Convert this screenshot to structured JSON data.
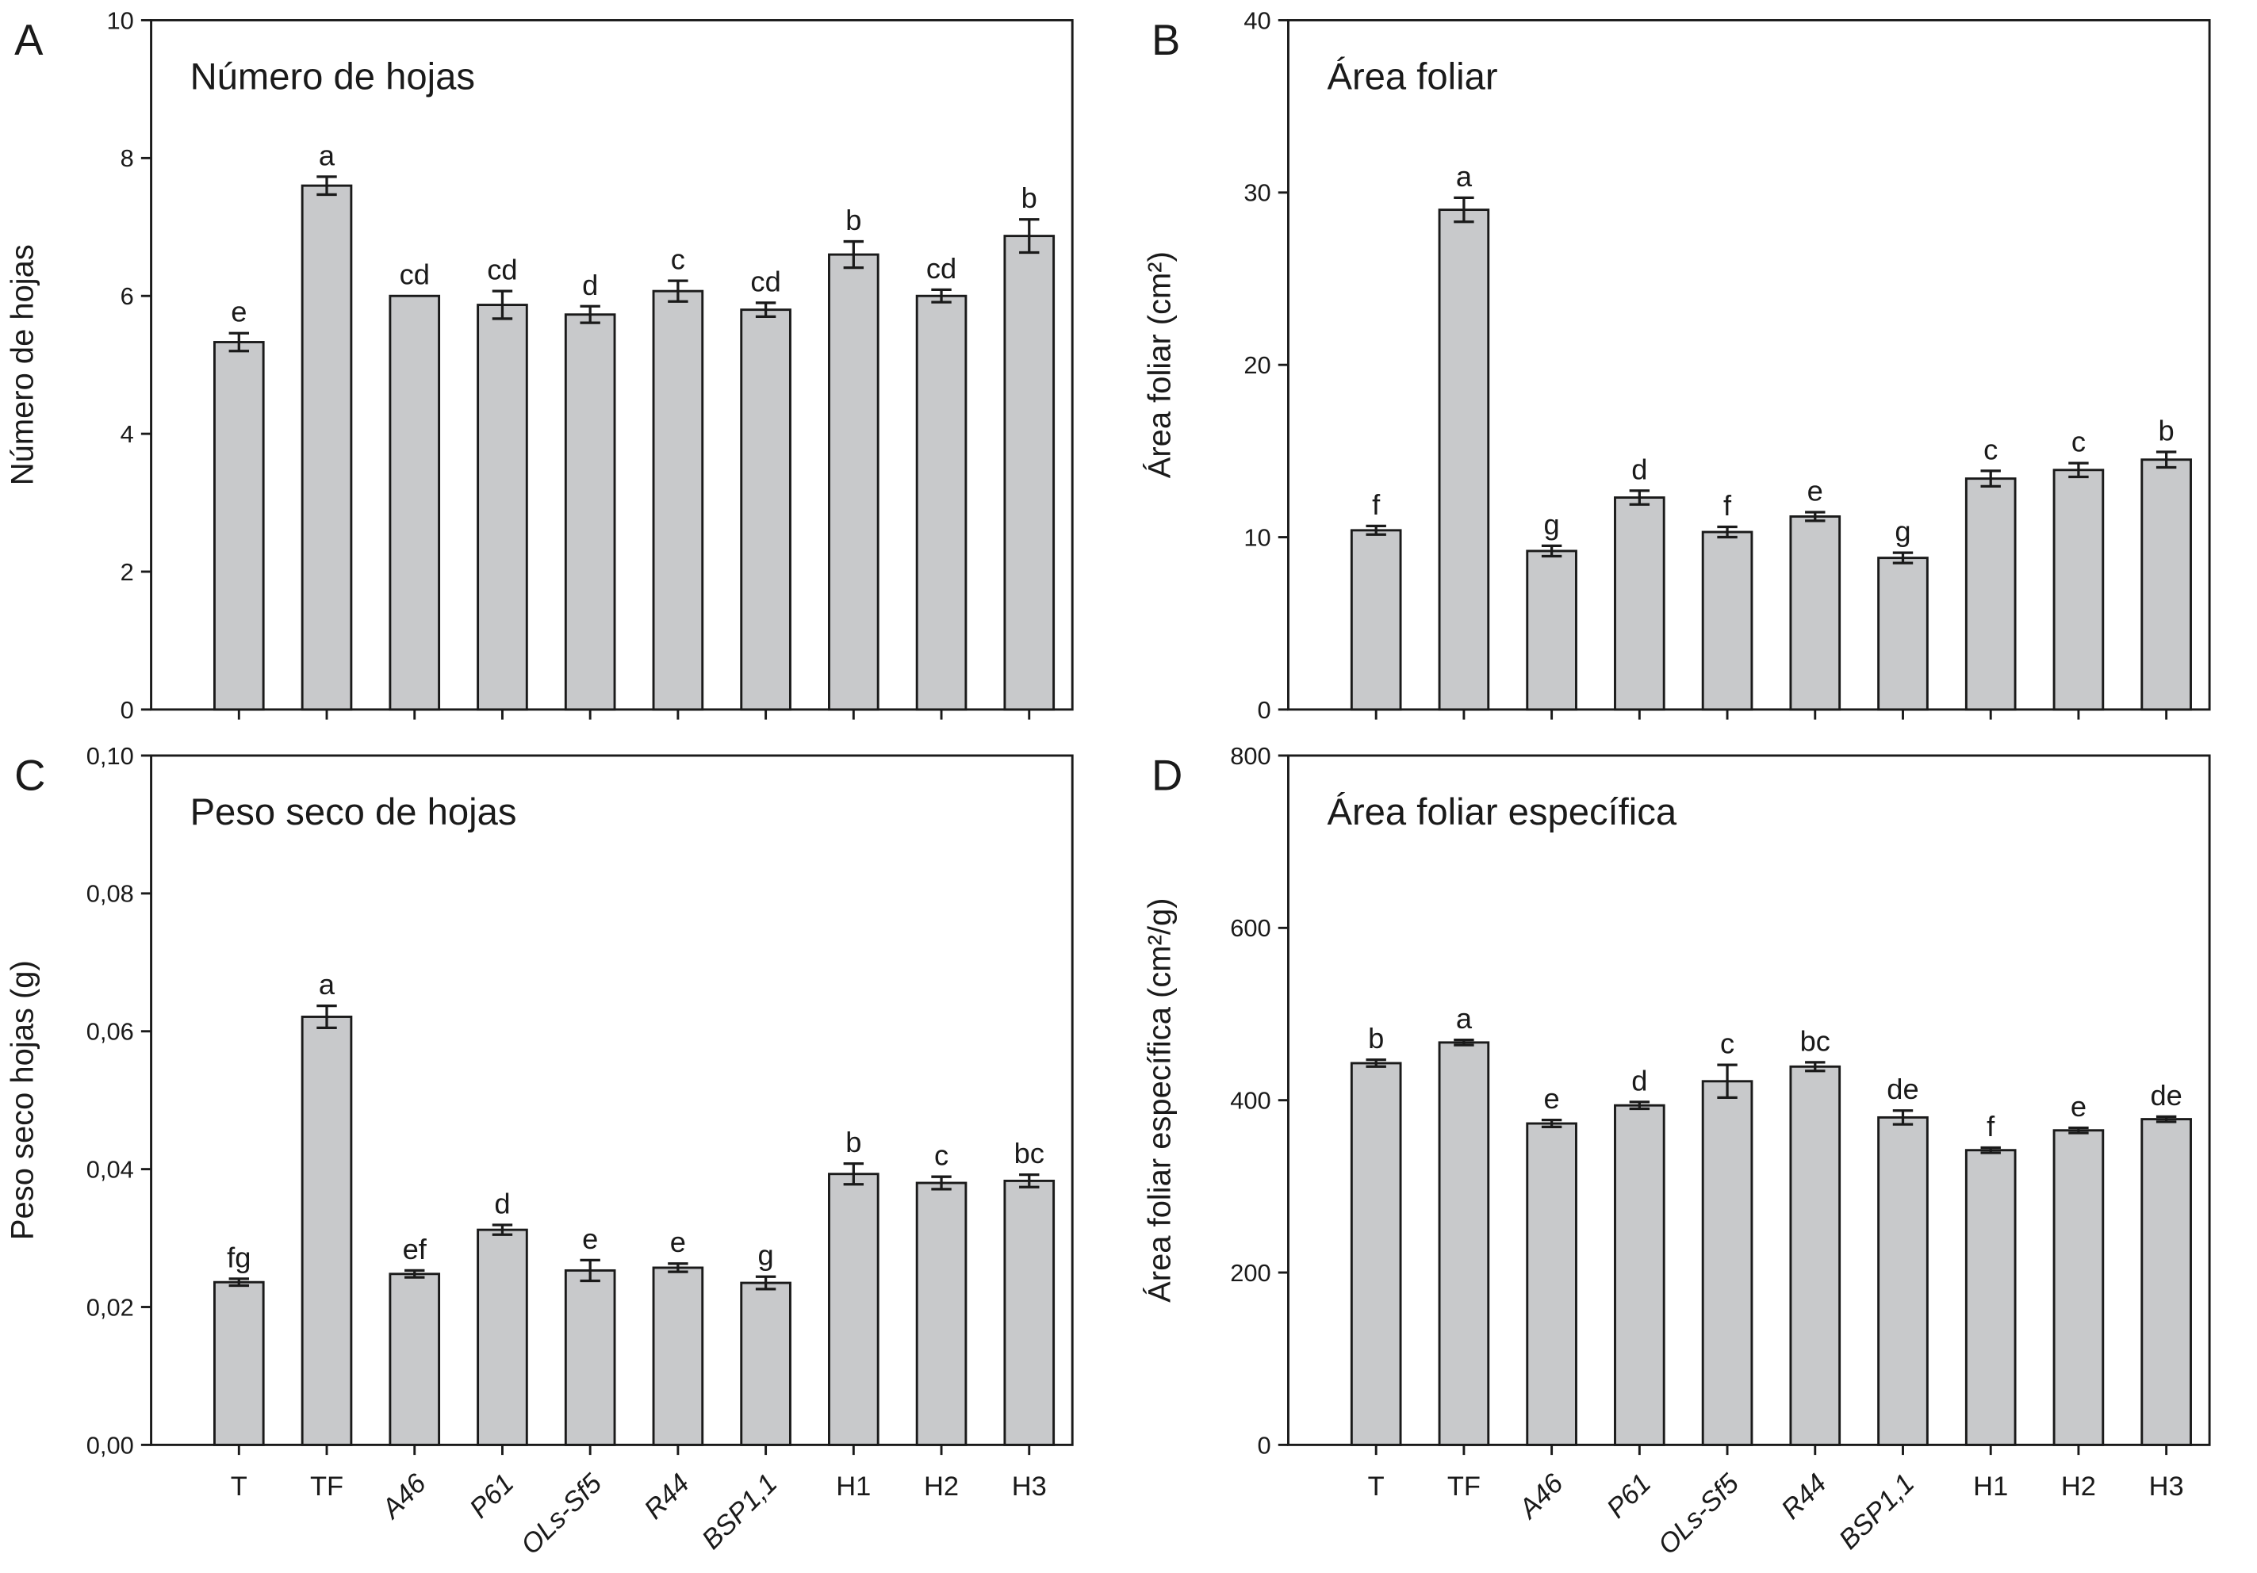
{
  "chart_data": [
    {
      "type": "bar",
      "panel": "A",
      "title": "Número de hojas",
      "ylabel": "Número de hojas",
      "ylim": [
        0,
        10
      ],
      "yticks": [
        "0",
        "2",
        "4",
        "6",
        "8",
        "10"
      ],
      "ytick_values": [
        0,
        2,
        4,
        6,
        8,
        10
      ],
      "categories": [
        "T",
        "TF",
        "A46",
        "P61",
        "OLs-Sf5",
        "R44",
        "BSP1,1",
        "H1",
        "H2",
        "H3"
      ],
      "values": [
        5.33,
        7.6,
        6.0,
        5.87,
        5.73,
        6.07,
        5.8,
        6.6,
        6.0,
        6.87
      ],
      "errors": [
        0.13,
        0.13,
        0,
        0.2,
        0.12,
        0.15,
        0.1,
        0.19,
        0.09,
        0.24
      ],
      "letters": [
        "e",
        "a",
        "cd",
        "cd",
        "d",
        "c",
        "cd",
        "b",
        "cd",
        "b"
      ]
    },
    {
      "type": "bar",
      "panel": "B",
      "title": "Área foliar",
      "ylabel": "Área foliar (cm²)",
      "ylim": [
        0,
        40
      ],
      "yticks": [
        "0",
        "10",
        "20",
        "30",
        "40"
      ],
      "ytick_values": [
        0,
        10,
        20,
        30,
        40
      ],
      "categories": [
        "T",
        "TF",
        "A46",
        "P61",
        "OLs-Sf5",
        "R44",
        "BSP1,1",
        "H1",
        "H2",
        "H3"
      ],
      "values": [
        10.4,
        29.0,
        9.2,
        12.3,
        10.3,
        11.2,
        8.8,
        13.4,
        13.9,
        14.5
      ],
      "errors": [
        0.25,
        0.7,
        0.3,
        0.4,
        0.3,
        0.25,
        0.3,
        0.45,
        0.4,
        0.45
      ],
      "letters": [
        "f",
        "a",
        "g",
        "d",
        "f",
        "e",
        "g",
        "c",
        "c",
        "b"
      ]
    },
    {
      "type": "bar",
      "panel": "C",
      "title": "Peso seco de hojas",
      "ylabel": "Peso seco hojas (g)",
      "ylim": [
        0,
        0.1
      ],
      "yticks": [
        "0,00",
        "0,02",
        "0,04",
        "0,06",
        "0,08",
        "0,10"
      ],
      "ytick_values": [
        0,
        0.02,
        0.04,
        0.06,
        0.08,
        0.1
      ],
      "categories": [
        "T",
        "TF",
        "A46",
        "P61",
        "OLs-Sf5",
        "R44",
        "BSP1,1",
        "H1",
        "H2",
        "H3"
      ],
      "values": [
        0.0236,
        0.0621,
        0.0248,
        0.0312,
        0.0253,
        0.0257,
        0.0235,
        0.0393,
        0.038,
        0.0383
      ],
      "errors": [
        0.0005,
        0.0016,
        0.0005,
        0.0007,
        0.0015,
        0.0006,
        0.0009,
        0.0015,
        0.0009,
        0.0009
      ],
      "letters": [
        "fg",
        "a",
        "ef",
        "d",
        "e",
        "e",
        "g",
        "b",
        "c",
        "bc"
      ]
    },
    {
      "type": "bar",
      "panel": "D",
      "title": "Área foliar específica",
      "ylabel": "Área foliar específica (cm²/g)",
      "ylim": [
        0,
        800
      ],
      "yticks": [
        "0",
        "200",
        "400",
        "600",
        "800"
      ],
      "ytick_values": [
        0,
        200,
        400,
        600,
        800
      ],
      "categories": [
        "T",
        "TF",
        "A46",
        "P61",
        "OLs-Sf5",
        "R44",
        "BSP1,1",
        "H1",
        "H2",
        "H3"
      ],
      "values": [
        443,
        467,
        373,
        394,
        422,
        439,
        380,
        342,
        365,
        378
      ],
      "errors": [
        4,
        3,
        4,
        4,
        19,
        5,
        8,
        3,
        3,
        3
      ],
      "letters": [
        "b",
        "a",
        "e",
        "d",
        "c",
        "bc",
        "de",
        "f",
        "e",
        "de"
      ]
    }
  ],
  "bar_color": "#c8c9cb",
  "italic_categories": [
    "A46",
    "P61",
    "OLs-Sf5",
    "R44",
    "BSP1,1"
  ]
}
